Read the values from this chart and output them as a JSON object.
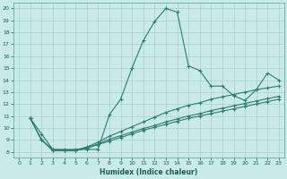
{
  "title": "",
  "xlabel": "Humidex (Indice chaleur)",
  "background_color": "#c8eae8",
  "grid_color": "#b0ccc8",
  "line_color": "#2e7d6e",
  "xlim": [
    -0.5,
    23.5
  ],
  "ylim": [
    7.5,
    20.5
  ],
  "yticks": [
    8,
    9,
    10,
    11,
    12,
    13,
    14,
    15,
    16,
    17,
    18,
    19,
    20
  ],
  "xticks": [
    0,
    1,
    2,
    3,
    4,
    5,
    6,
    7,
    8,
    9,
    10,
    11,
    12,
    13,
    14,
    15,
    16,
    17,
    18,
    19,
    20,
    21,
    22,
    23
  ],
  "lines": [
    {
      "x": [
        1,
        2,
        3,
        4,
        5,
        6,
        7,
        8,
        9,
        10,
        11,
        12,
        13,
        14,
        15,
        16,
        17,
        18,
        19,
        20,
        21,
        22,
        23
      ],
      "y": [
        10.8,
        9.5,
        8.2,
        8.2,
        8.2,
        8.2,
        8.2,
        11.1,
        12.4,
        15.0,
        17.3,
        18.9,
        20.0,
        19.7,
        15.2,
        14.8,
        13.5,
        13.5,
        12.7,
        12.3,
        13.2,
        14.6,
        14.0
      ]
    },
    {
      "x": [
        1,
        2,
        3,
        4,
        5,
        6,
        7,
        8,
        9,
        10,
        11,
        12,
        13,
        14,
        15,
        16,
        17,
        18,
        19,
        20,
        21,
        22,
        23
      ],
      "y": [
        10.8,
        9.0,
        8.2,
        8.15,
        8.15,
        8.4,
        8.8,
        9.3,
        9.7,
        10.1,
        10.5,
        10.9,
        11.3,
        11.6,
        11.9,
        12.1,
        12.4,
        12.6,
        12.8,
        13.0,
        13.2,
        13.35,
        13.5
      ]
    },
    {
      "x": [
        1,
        2,
        3,
        4,
        5,
        6,
        7,
        8,
        9,
        10,
        11,
        12,
        13,
        14,
        15,
        16,
        17,
        18,
        19,
        20,
        21,
        22,
        23
      ],
      "y": [
        10.8,
        9.0,
        8.1,
        8.1,
        8.1,
        8.35,
        8.65,
        9.05,
        9.35,
        9.65,
        9.95,
        10.2,
        10.5,
        10.75,
        11.0,
        11.2,
        11.45,
        11.65,
        11.85,
        12.05,
        12.25,
        12.45,
        12.65
      ]
    },
    {
      "x": [
        1,
        2,
        3,
        4,
        5,
        6,
        7,
        8,
        9,
        10,
        11,
        12,
        13,
        14,
        15,
        16,
        17,
        18,
        19,
        20,
        21,
        22,
        23
      ],
      "y": [
        10.8,
        9.0,
        8.1,
        8.1,
        8.1,
        8.3,
        8.6,
        8.9,
        9.2,
        9.5,
        9.8,
        10.05,
        10.3,
        10.55,
        10.8,
        11.0,
        11.2,
        11.4,
        11.6,
        11.8,
        12.0,
        12.2,
        12.4
      ]
    }
  ]
}
